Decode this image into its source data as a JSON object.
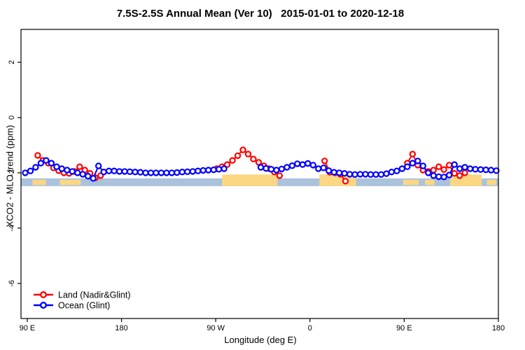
{
  "chart": {
    "title": "7.5S-2.5S Annual Mean (Ver 10)   2015-01-01 to 2020-12-18",
    "xlabel": "Longitude (deg E)",
    "ylabel": "XCO2 - MLO trend (ppm)"
  },
  "chart_data": {
    "type": "line",
    "title": "7.5S-2.5S Annual Mean (Ver 10)   2015-01-01 to 2020-12-18",
    "xlabel": "Longitude (deg E)",
    "ylabel": "XCO2 - MLO trend (ppm)",
    "x_axis": {
      "range": [
        84,
        540
      ],
      "ticks": [
        {
          "value": 90,
          "label": "90 E"
        },
        {
          "value": 180,
          "label": "180"
        },
        {
          "value": 270,
          "label": "90 W"
        },
        {
          "value": 360,
          "label": "0"
        },
        {
          "value": 450,
          "label": "90 E"
        },
        {
          "value": 540,
          "label": "180"
        }
      ]
    },
    "y_axis": {
      "range": [
        -7.27,
        3.19
      ],
      "ticks": [
        {
          "value": 2,
          "label": "2"
        },
        {
          "value": 0,
          "label": "0"
        },
        {
          "value": -2,
          "label": "-2"
        },
        {
          "value": -4,
          "label": "-4"
        },
        {
          "value": -6,
          "label": "-6"
        }
      ]
    },
    "background_bands": {
      "ocean_band": {
        "color": "#abc2dc",
        "y_top": -2.2,
        "y_bottom": -2.48
      },
      "land_patch_color": "#fcd783",
      "patches": [
        {
          "from": 95,
          "to": 108,
          "kind": "sliver"
        },
        {
          "from": 121,
          "to": 141,
          "kind": "sliver"
        },
        {
          "from": 276,
          "to": 329,
          "kind": "full"
        },
        {
          "from": 369,
          "to": 404,
          "kind": "full"
        },
        {
          "from": 449,
          "to": 464,
          "kind": "sliver"
        },
        {
          "from": 470,
          "to": 479,
          "kind": "sliver"
        },
        {
          "from": 494,
          "to": 524,
          "kind": "full"
        },
        {
          "from": 529,
          "to": 538,
          "kind": "sliver"
        }
      ]
    },
    "series": [
      {
        "id": "land",
        "name": "Land (Nadir&Glint)",
        "color": "#ff0000",
        "points": [
          [
            100,
            -1.37
          ],
          [
            105,
            -1.55
          ],
          [
            110,
            -1.65
          ],
          [
            115,
            -1.82
          ],
          [
            120,
            -1.92
          ],
          [
            125,
            -2.0
          ],
          [
            130,
            -2.02
          ],
          [
            135,
            -1.95
          ],
          [
            140,
            -1.78
          ],
          [
            145,
            -1.9
          ],
          [
            150,
            -2.02
          ],
          [
            155,
            -2.18
          ],
          [
            160,
            -2.1
          ],
          null,
          [
            271,
            -1.85
          ],
          [
            276,
            -1.78
          ],
          [
            281,
            -1.7
          ],
          [
            286,
            -1.55
          ],
          [
            291,
            -1.38
          ],
          [
            296,
            -1.17
          ],
          [
            301,
            -1.32
          ],
          [
            306,
            -1.5
          ],
          [
            311,
            -1.62
          ],
          [
            316,
            -1.75
          ],
          [
            321,
            -1.85
          ],
          [
            326,
            -1.97
          ],
          [
            331,
            -2.1
          ],
          null,
          [
            374,
            -1.57
          ],
          [
            379,
            -1.98
          ],
          [
            384,
            -2.0
          ],
          [
            389,
            -2.05
          ],
          [
            394,
            -2.3
          ],
          null,
          [
            453,
            -1.65
          ],
          [
            458,
            -1.32
          ],
          [
            463,
            -1.72
          ],
          [
            468,
            -1.9
          ],
          [
            473,
            -1.95
          ],
          [
            478,
            -1.9
          ],
          [
            483,
            -1.78
          ],
          [
            488,
            -1.88
          ],
          [
            493,
            -1.72
          ],
          [
            498,
            -2.02
          ],
          [
            503,
            -2.1
          ],
          [
            508,
            -2.0
          ]
        ]
      },
      {
        "id": "ocean",
        "name": "Ocean (Glint)",
        "color": "#0000ff",
        "points": [
          [
            88,
            -2.0
          ],
          [
            93,
            -1.93
          ],
          [
            98,
            -1.8
          ],
          [
            103,
            -1.65
          ],
          [
            108,
            -1.55
          ],
          [
            113,
            -1.65
          ],
          [
            118,
            -1.78
          ],
          [
            123,
            -1.85
          ],
          [
            128,
            -1.9
          ],
          [
            133,
            -1.95
          ],
          [
            138,
            -2.0
          ],
          [
            143,
            -2.05
          ],
          [
            148,
            -2.12
          ],
          [
            153,
            -2.2
          ],
          [
            158,
            -1.75
          ],
          [
            163,
            -1.97
          ],
          [
            168,
            -1.93
          ],
          [
            173,
            -1.93
          ],
          [
            178,
            -1.95
          ],
          [
            183,
            -1.95
          ],
          [
            188,
            -1.96
          ],
          [
            193,
            -1.97
          ],
          [
            198,
            -1.98
          ],
          [
            203,
            -2.0
          ],
          [
            208,
            -2.0
          ],
          [
            213,
            -2.0
          ],
          [
            218,
            -2.0
          ],
          [
            223,
            -2.0
          ],
          [
            228,
            -2.0
          ],
          [
            233,
            -1.99
          ],
          [
            238,
            -1.97
          ],
          [
            243,
            -1.96
          ],
          [
            248,
            -1.95
          ],
          [
            253,
            -1.93
          ],
          [
            258,
            -1.91
          ],
          [
            263,
            -1.9
          ],
          [
            268,
            -1.89
          ],
          [
            273,
            -1.87
          ],
          [
            278,
            -1.85
          ],
          null,
          [
            313,
            -1.8
          ],
          [
            318,
            -1.84
          ],
          [
            323,
            -1.87
          ],
          [
            328,
            -1.9
          ],
          [
            333,
            -1.86
          ],
          [
            338,
            -1.8
          ],
          [
            343,
            -1.74
          ],
          [
            348,
            -1.67
          ],
          [
            353,
            -1.7
          ],
          [
            358,
            -1.66
          ],
          [
            363,
            -1.72
          ],
          [
            368,
            -1.85
          ],
          [
            373,
            -1.82
          ],
          [
            378,
            -1.92
          ],
          [
            383,
            -1.98
          ],
          [
            388,
            -2.0
          ],
          [
            393,
            -2.02
          ],
          [
            398,
            -2.05
          ],
          [
            403,
            -2.06
          ],
          [
            408,
            -2.05
          ],
          [
            413,
            -2.05
          ],
          [
            418,
            -2.06
          ],
          [
            423,
            -2.06
          ],
          [
            428,
            -2.06
          ],
          [
            433,
            -2.03
          ],
          [
            438,
            -1.97
          ],
          [
            443,
            -1.93
          ],
          [
            448,
            -1.85
          ],
          [
            453,
            -1.78
          ],
          [
            458,
            -1.65
          ],
          [
            463,
            -1.57
          ],
          [
            468,
            -1.75
          ],
          [
            473,
            -2.0
          ],
          [
            478,
            -2.1
          ],
          [
            483,
            -2.14
          ],
          [
            488,
            -2.15
          ],
          [
            493,
            -2.08
          ],
          [
            498,
            -1.7
          ],
          [
            503,
            -1.85
          ],
          [
            508,
            -1.8
          ],
          [
            513,
            -1.85
          ],
          [
            518,
            -1.87
          ],
          [
            523,
            -1.88
          ],
          [
            528,
            -1.89
          ],
          [
            533,
            -1.9
          ],
          [
            538,
            -1.92
          ]
        ]
      }
    ],
    "legend": {
      "position": "bottom-left",
      "entries": [
        {
          "label": "Land (Nadir&Glint)",
          "color": "#ff0000"
        },
        {
          "label": "Ocean (Glint)",
          "color": "#0000ff"
        }
      ]
    },
    "grid": "off"
  }
}
